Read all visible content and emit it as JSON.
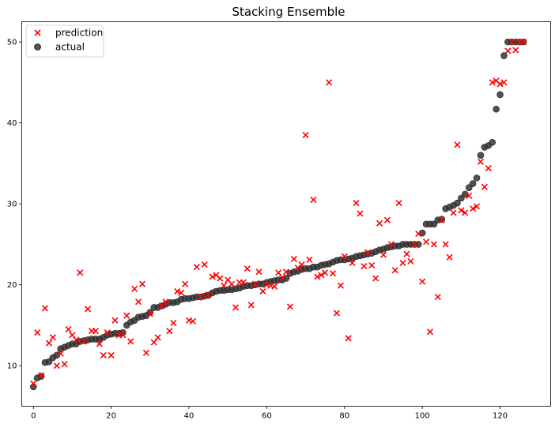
{
  "chart_data": {
    "type": "scatter",
    "title": "Stacking Ensemble",
    "xlabel": "",
    "ylabel": "",
    "xlim": [
      -3,
      133
    ],
    "ylim": [
      5,
      52.5
    ],
    "xticks": [
      0,
      20,
      40,
      60,
      80,
      100,
      120
    ],
    "yticks": [
      10,
      20,
      30,
      40,
      50
    ],
    "grid": false,
    "legend_position": "top-left",
    "series": [
      {
        "name": "prediction",
        "marker": "x",
        "color": "#ff0000",
        "x": [
          0,
          1,
          2,
          3,
          4,
          5,
          6,
          7,
          8,
          9,
          10,
          11,
          12,
          13,
          14,
          15,
          16,
          17,
          18,
          19,
          20,
          21,
          22,
          23,
          24,
          25,
          26,
          27,
          28,
          29,
          30,
          31,
          32,
          33,
          34,
          35,
          36,
          37,
          38,
          39,
          40,
          41,
          42,
          43,
          44,
          45,
          46,
          47,
          48,
          49,
          50,
          51,
          52,
          53,
          54,
          55,
          56,
          57,
          58,
          59,
          60,
          61,
          62,
          63,
          64,
          65,
          66,
          67,
          68,
          69,
          70,
          71,
          72,
          73,
          74,
          75,
          76,
          77,
          78,
          79,
          80,
          81,
          82,
          83,
          84,
          85,
          86,
          87,
          88,
          89,
          90,
          91,
          92,
          93,
          94,
          95,
          96,
          97,
          98,
          99,
          100,
          101,
          102,
          103,
          104,
          105,
          106,
          107,
          108,
          109,
          110,
          111,
          112,
          113,
          114,
          115,
          116,
          117,
          118,
          119,
          120,
          121,
          122,
          123,
          124,
          125,
          126
        ],
        "y": [
          7.8,
          14.1,
          8.8,
          17.1,
          12.8,
          13.5,
          10.0,
          11.5,
          10.2,
          14.5,
          13.8,
          13.2,
          21.5,
          13.0,
          17.0,
          14.3,
          14.3,
          12.7,
          11.3,
          14.1,
          11.3,
          15.6,
          13.8,
          13.8,
          16.2,
          13.0,
          19.5,
          17.9,
          20.1,
          11.6,
          16.4,
          12.9,
          13.5,
          17.4,
          17.9,
          14.3,
          15.3,
          19.2,
          19.0,
          20.1,
          15.6,
          15.5,
          22.2,
          18.5,
          22.5,
          18.8,
          21.0,
          21.2,
          20.8,
          19.9,
          20.6,
          20.1,
          17.2,
          20.3,
          20.3,
          22.0,
          17.5,
          20.1,
          21.6,
          19.2,
          20.0,
          19.9,
          19.8,
          21.5,
          20.9,
          21.6,
          17.3,
          23.2,
          22.1,
          22.5,
          38.5,
          23.1,
          30.5,
          21.0,
          21.2,
          21.5,
          45.0,
          21.4,
          16.5,
          19.9,
          23.5,
          13.4,
          22.7,
          30.1,
          28.8,
          22.3,
          24.0,
          22.4,
          20.8,
          27.6,
          23.7,
          28.0,
          25.0,
          21.8,
          30.1,
          22.7,
          23.8,
          22.9,
          25.0,
          26.3,
          20.4,
          25.3,
          14.2,
          25.0,
          18.5,
          28.0,
          25.0,
          23.4,
          28.9,
          37.3,
          29.2,
          28.9,
          31.0,
          29.4,
          29.7,
          35.2,
          32.1,
          34.4,
          45.0,
          45.2,
          44.8,
          45.0,
          48.9,
          50.0,
          49.0,
          50.0,
          50.0
        ]
      },
      {
        "name": "actual",
        "marker": "o",
        "color": "#333333",
        "x": [
          0,
          1,
          2,
          3,
          4,
          5,
          6,
          7,
          8,
          9,
          10,
          11,
          12,
          13,
          14,
          15,
          16,
          17,
          18,
          19,
          20,
          21,
          22,
          23,
          24,
          25,
          26,
          27,
          28,
          29,
          30,
          31,
          32,
          33,
          34,
          35,
          36,
          37,
          38,
          39,
          40,
          41,
          42,
          43,
          44,
          45,
          46,
          47,
          48,
          49,
          50,
          51,
          52,
          53,
          54,
          55,
          56,
          57,
          58,
          59,
          60,
          61,
          62,
          63,
          64,
          65,
          66,
          67,
          68,
          69,
          70,
          71,
          72,
          73,
          74,
          75,
          76,
          77,
          78,
          79,
          80,
          81,
          82,
          83,
          84,
          85,
          86,
          87,
          88,
          89,
          90,
          91,
          92,
          93,
          94,
          95,
          96,
          97,
          98,
          99,
          100,
          101,
          102,
          103,
          104,
          105,
          106,
          107,
          108,
          109,
          110,
          111,
          112,
          113,
          114,
          115,
          116,
          117,
          118,
          119,
          120,
          121,
          122,
          123,
          124,
          125,
          126
        ],
        "y": [
          7.4,
          8.5,
          8.7,
          10.4,
          10.5,
          11.0,
          11.3,
          12.1,
          12.3,
          12.5,
          12.7,
          12.7,
          13.0,
          13.1,
          13.2,
          13.3,
          13.3,
          13.3,
          13.5,
          13.8,
          13.9,
          14.0,
          14.0,
          14.1,
          15.0,
          15.4,
          15.6,
          16.0,
          16.1,
          16.2,
          16.6,
          17.2,
          17.2,
          17.4,
          17.6,
          17.8,
          17.8,
          17.9,
          18.2,
          18.3,
          18.3,
          18.4,
          18.5,
          18.5,
          18.6,
          18.7,
          19.0,
          19.2,
          19.3,
          19.3,
          19.4,
          19.4,
          19.5,
          19.6,
          19.8,
          19.9,
          19.9,
          20.0,
          20.1,
          20.1,
          20.3,
          20.4,
          20.5,
          20.6,
          20.6,
          20.8,
          21.4,
          21.6,
          21.7,
          21.9,
          22.0,
          22.0,
          22.2,
          22.2,
          22.4,
          22.5,
          22.6,
          22.8,
          23.0,
          23.1,
          23.1,
          23.2,
          23.3,
          23.5,
          23.6,
          23.7,
          23.8,
          23.9,
          24.1,
          24.3,
          24.4,
          24.6,
          24.7,
          24.8,
          24.8,
          25.0,
          25.0,
          25.0,
          25.0,
          25.0,
          26.4,
          27.5,
          27.5,
          27.5,
          28.0,
          28.1,
          29.4,
          29.6,
          29.8,
          30.1,
          30.7,
          31.2,
          32.0,
          32.5,
          33.2,
          36.0,
          37.0,
          37.2,
          37.6,
          41.7,
          43.5,
          48.3,
          50.0,
          50.0,
          50.0,
          50.0,
          50.0
        ]
      }
    ]
  }
}
